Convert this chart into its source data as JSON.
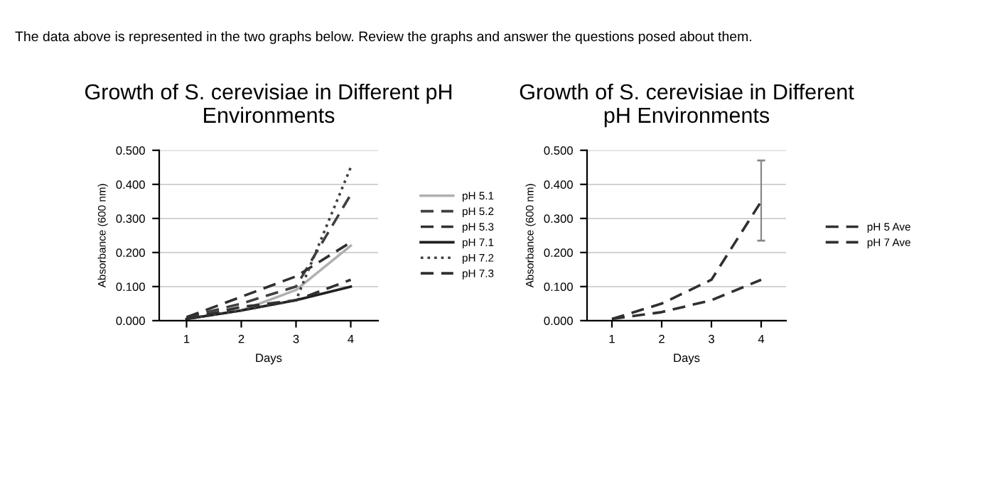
{
  "chart_data": [
    {
      "type": "line",
      "title": "Growth of S. cerevisiae in Different pH\nEnvironments",
      "xlabel": "Days",
      "ylabel": "Absorbance (600 nm)",
      "annotations": [
        "The data above is represented in the two graphs below. Review the graphs and answer the questions posed about them."
      ],
      "categories": [
        "1",
        "2",
        "3",
        "4"
      ],
      "ylim": [
        0,
        0.5
      ],
      "yticks": [
        {
          "value": 0,
          "label": "0.000"
        },
        {
          "value": 0.1,
          "label": "0.100"
        },
        {
          "value": 0.2,
          "label": "0.200"
        },
        {
          "value": 0.3,
          "label": "0.300"
        },
        {
          "value": 0.4,
          "label": "0.400"
        },
        {
          "value": 0.5,
          "label": "0.500"
        }
      ],
      "grid": "y",
      "legend": "right",
      "marker": "none",
      "series": [
        {
          "name": "pH 5.1",
          "color": "#b0b0b0",
          "line_style": "solid",
          "values": [
            0.005,
            0.03,
            0.09,
            0.22
          ]
        },
        {
          "name": "pH 5.2",
          "color": "#404040",
          "line_style": "dashed",
          "values": [
            0.01,
            0.05,
            0.1,
            0.37
          ]
        },
        {
          "name": "pH 5.3",
          "color": "#303030",
          "line_style": "dashed",
          "values": [
            0.01,
            0.07,
            0.13,
            0.23
          ]
        },
        {
          "name": "pH 7.1",
          "color": "#202020",
          "line_style": "solid",
          "values": [
            0.005,
            0.03,
            0.06,
            0.1
          ]
        },
        {
          "name": "pH 7.2",
          "color": "#404040",
          "line_style": "dotted",
          "values": [
            0.005,
            0.03,
            0.06,
            0.45
          ]
        },
        {
          "name": "pH 7.3",
          "color": "#303030",
          "line_style": "dashed",
          "values": [
            0.005,
            0.04,
            0.06,
            0.12
          ]
        }
      ]
    },
    {
      "type": "line",
      "title": "Growth of S. cerevisiae in Different\npH Environments",
      "xlabel": "Days",
      "ylabel": "Absorbance (600 nm)",
      "categories": [
        "1",
        "2",
        "3",
        "4"
      ],
      "ylim": [
        0,
        0.5
      ],
      "yticks": [
        {
          "value": 0,
          "label": "0.000"
        },
        {
          "value": 0.1,
          "label": "0.100"
        },
        {
          "value": 0.2,
          "label": "0.200"
        },
        {
          "value": 0.3,
          "label": "0.300"
        },
        {
          "value": 0.4,
          "label": "0.400"
        },
        {
          "value": 0.5,
          "label": "0.500"
        }
      ],
      "grid": "y",
      "legend": "right",
      "marker": "none",
      "series": [
        {
          "name": "pH 5 Ave",
          "color": "#303030",
          "line_style": "dashed",
          "values": [
            0.005,
            0.05,
            0.12,
            0.35
          ],
          "errors": [
            null,
            null,
            null,
            [
              0.235,
              0.47
            ]
          ]
        },
        {
          "name": "pH 7 Ave",
          "color": "#303030",
          "line_style": "dashed",
          "values": [
            0.005,
            0.025,
            0.06,
            0.12
          ]
        }
      ]
    }
  ]
}
